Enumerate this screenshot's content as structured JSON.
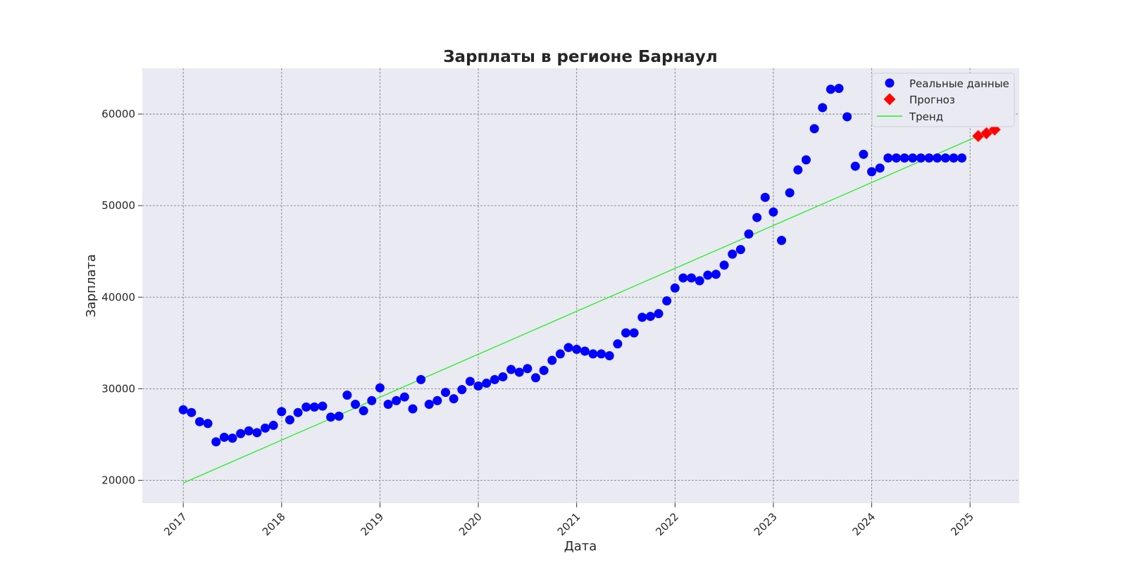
{
  "chart_data": {
    "type": "scatter",
    "title": "Зарплаты в регионе Барнаул",
    "xlabel": "Дата",
    "ylabel": "Зарплата",
    "xlim": [
      "2016-08-01",
      "2025-07-01"
    ],
    "ylim": [
      17500,
      65000
    ],
    "x_ticks": [
      "2017",
      "2018",
      "2019",
      "2020",
      "2021",
      "2022",
      "2023",
      "2024",
      "2025"
    ],
    "y_ticks": [
      20000,
      30000,
      40000,
      50000,
      60000
    ],
    "grid": true,
    "legend_position": "top-right",
    "colors": {
      "plot_background": "#eaeaf2",
      "real": "#0000ff",
      "forecast": "#ff0000",
      "trend": "#22ee22",
      "grid": "#777777"
    },
    "series": [
      {
        "name": "Реальные данные",
        "marker": "circle",
        "color": "#0000ff",
        "points": [
          [
            "2017-01",
            27700
          ],
          [
            "2017-02",
            27400
          ],
          [
            "2017-03",
            26400
          ],
          [
            "2017-04",
            26200
          ],
          [
            "2017-05",
            24200
          ],
          [
            "2017-06",
            24700
          ],
          [
            "2017-07",
            24600
          ],
          [
            "2017-08",
            25100
          ],
          [
            "2017-09",
            25400
          ],
          [
            "2017-10",
            25200
          ],
          [
            "2017-11",
            25700
          ],
          [
            "2017-12",
            26000
          ],
          [
            "2018-01",
            27500
          ],
          [
            "2018-02",
            26600
          ],
          [
            "2018-03",
            27400
          ],
          [
            "2018-04",
            28000
          ],
          [
            "2018-05",
            28000
          ],
          [
            "2018-06",
            28100
          ],
          [
            "2018-07",
            26900
          ],
          [
            "2018-08",
            27000
          ],
          [
            "2018-09",
            29300
          ],
          [
            "2018-10",
            28300
          ],
          [
            "2018-11",
            27600
          ],
          [
            "2018-12",
            28700
          ],
          [
            "2019-01",
            30100
          ],
          [
            "2019-02",
            28300
          ],
          [
            "2019-03",
            28700
          ],
          [
            "2019-04",
            29100
          ],
          [
            "2019-05",
            27800
          ],
          [
            "2019-06",
            31000
          ],
          [
            "2019-07",
            28300
          ],
          [
            "2019-08",
            28700
          ],
          [
            "2019-09",
            29600
          ],
          [
            "2019-10",
            28900
          ],
          [
            "2019-11",
            29900
          ],
          [
            "2019-12",
            30800
          ],
          [
            "2020-01",
            30300
          ],
          [
            "2020-02",
            30600
          ],
          [
            "2020-03",
            31000
          ],
          [
            "2020-04",
            31300
          ],
          [
            "2020-05",
            32100
          ],
          [
            "2020-06",
            31800
          ],
          [
            "2020-07",
            32200
          ],
          [
            "2020-08",
            31200
          ],
          [
            "2020-09",
            32000
          ],
          [
            "2020-10",
            33100
          ],
          [
            "2020-11",
            33800
          ],
          [
            "2020-12",
            34500
          ],
          [
            "2021-01",
            34300
          ],
          [
            "2021-02",
            34100
          ],
          [
            "2021-03",
            33800
          ],
          [
            "2021-04",
            33800
          ],
          [
            "2021-05",
            33600
          ],
          [
            "2021-06",
            34900
          ],
          [
            "2021-07",
            36100
          ],
          [
            "2021-08",
            36100
          ],
          [
            "2021-09",
            37800
          ],
          [
            "2021-10",
            37900
          ],
          [
            "2021-11",
            38200
          ],
          [
            "2021-12",
            39600
          ],
          [
            "2022-01",
            41000
          ],
          [
            "2022-02",
            42100
          ],
          [
            "2022-03",
            42100
          ],
          [
            "2022-04",
            41800
          ],
          [
            "2022-05",
            42400
          ],
          [
            "2022-06",
            42500
          ],
          [
            "2022-07",
            43500
          ],
          [
            "2022-08",
            44700
          ],
          [
            "2022-09",
            45200
          ],
          [
            "2022-10",
            46900
          ],
          [
            "2022-11",
            48700
          ],
          [
            "2022-12",
            50900
          ],
          [
            "2023-01",
            49300
          ],
          [
            "2023-02",
            46200
          ],
          [
            "2023-03",
            51400
          ],
          [
            "2023-04",
            53900
          ],
          [
            "2023-05",
            55000
          ],
          [
            "2023-06",
            58400
          ],
          [
            "2023-07",
            60700
          ],
          [
            "2023-08",
            62700
          ],
          [
            "2023-09",
            62800
          ],
          [
            "2023-10",
            59700
          ],
          [
            "2023-11",
            54300
          ],
          [
            "2023-12",
            55600
          ],
          [
            "2024-01",
            53700
          ],
          [
            "2024-02",
            54100
          ],
          [
            "2024-03",
            55200
          ],
          [
            "2024-04",
            55200
          ],
          [
            "2024-05",
            55200
          ],
          [
            "2024-06",
            55200
          ],
          [
            "2024-07",
            55200
          ],
          [
            "2024-08",
            55200
          ],
          [
            "2024-09",
            55200
          ],
          [
            "2024-10",
            55200
          ],
          [
            "2024-11",
            55200
          ],
          [
            "2024-12",
            55200
          ]
        ]
      },
      {
        "name": "Прогноз",
        "marker": "diamond",
        "color": "#ff0000",
        "points": [
          [
            "2025-02",
            57600
          ],
          [
            "2025-03",
            57900
          ],
          [
            "2025-04",
            58300
          ]
        ]
      },
      {
        "name": "Тренд",
        "marker": "line",
        "color": "#22ee22",
        "points": [
          [
            "2017-01",
            19700
          ],
          [
            "2025-02",
            57600
          ]
        ]
      }
    ]
  }
}
